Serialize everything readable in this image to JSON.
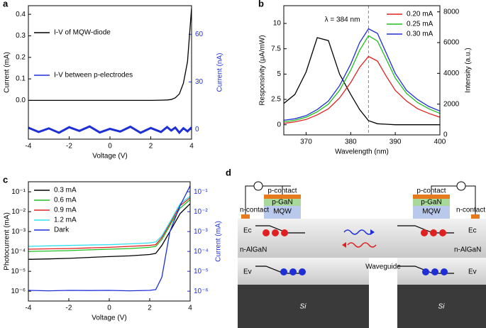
{
  "chart_data": [
    {
      "type": "line",
      "label": "a",
      "xlabel": "Voltage (V)",
      "ylabel": "Current (mA)",
      "y2label": "Current (nA)",
      "xlim": [
        -4,
        4
      ],
      "xticks": [
        -4,
        -2,
        0,
        2,
        4
      ],
      "ylim": [
        -0.18,
        0.44
      ],
      "yticks": [
        {
          "value": 0,
          "label": "0.0"
        },
        0.1,
        0.2,
        0.3,
        0.4
      ],
      "y2lim": [
        -6,
        78
      ],
      "y2ticks": [
        0,
        30,
        60
      ],
      "y2_color": "#1f2fd6",
      "legend": "upper left",
      "x": [
        -4,
        -3.5,
        -3,
        -2.5,
        -2,
        -1.5,
        -1,
        -0.5,
        0,
        0.5,
        1,
        1.5,
        2,
        2.5,
        2.8,
        3,
        3.2,
        3.4,
        3.6,
        3.8,
        4
      ],
      "series": [
        {
          "name": "I-V of MQW-diode",
          "color": "#000000",
          "values": [
            0,
            0,
            0,
            0,
            0,
            0,
            0,
            0,
            0,
            0,
            0,
            0,
            0,
            0.001,
            0.002,
            0.004,
            0.012,
            0.03,
            0.08,
            0.18,
            0.43
          ]
        },
        {
          "name": "I-V between p-electrodes",
          "color": "#1f2fd6",
          "axis": "y2",
          "values": [
            1.2,
            -1.5,
            0.8,
            -2,
            1.5,
            -0.8,
            2,
            -1.8,
            0.5,
            -1.2,
            1.8,
            -2,
            1,
            -1.5,
            1.6,
            -0.6,
            1.3,
            -1.9,
            0.9,
            -1.1,
            1.4
          ]
        }
      ]
    },
    {
      "type": "line",
      "label": "b",
      "xlabel": "Wavelength (nm)",
      "ylabel": "Responsivity (μA/mW)",
      "y2label": "Intensity (a.u.)",
      "xlim": [
        365,
        400
      ],
      "xticks": [
        370,
        380,
        390,
        400
      ],
      "ylim": [
        -1,
        11.75
      ],
      "yticks": [
        0,
        2.5,
        5,
        7.5,
        10
      ],
      "y2lim": [
        0,
        8400
      ],
      "y2ticks": [
        0,
        2000,
        4000,
        6000,
        8000
      ],
      "y2_color": "#000000",
      "legend": "upper right",
      "annotation": "λ = 384 nm",
      "vline": 384,
      "x": [
        365,
        367.5,
        370,
        372.5,
        375,
        377.5,
        380,
        382,
        384,
        386,
        388,
        390,
        392.5,
        395,
        397.5,
        400
      ],
      "series": [
        {
          "name": null,
          "color": "#000000",
          "values": [
            2.1,
            3,
            5.2,
            8.6,
            8.3,
            5,
            3,
            1.5,
            0.4,
            0.1,
            0.05,
            0,
            0,
            0,
            0,
            0
          ]
        },
        {
          "name": "0.20 mA",
          "color": "#e02020",
          "axis": "y2",
          "values": [
            750,
            850,
            1000,
            1300,
            1700,
            2400,
            3400,
            4400,
            5100,
            4800,
            3800,
            2900,
            2200,
            1700,
            1400,
            1150
          ]
        },
        {
          "name": "0.25 mA",
          "color": "#20c020",
          "axis": "y2",
          "values": [
            850,
            950,
            1150,
            1500,
            2000,
            2900,
            4200,
            5500,
            6450,
            6100,
            4900,
            3700,
            2700,
            2100,
            1700,
            1400
          ]
        },
        {
          "name": "0.30 mA",
          "color": "#1f2fd6",
          "axis": "y2",
          "values": [
            950,
            1050,
            1250,
            1650,
            2200,
            3200,
            4600,
            6000,
            6900,
            6600,
            5300,
            4000,
            2900,
            2300,
            1850,
            1550
          ]
        }
      ]
    },
    {
      "type": "line",
      "label": "c",
      "xlabel": "Voltage (V)",
      "ylabel": "Photocurrent (mA)",
      "y2label": "Current (mA)",
      "log_y": true,
      "xlim": [
        -4,
        4
      ],
      "xticks": [
        -4,
        -2,
        0,
        2,
        4
      ],
      "ylim": [
        3.2e-07,
        0.32
      ],
      "yticks": [
        {
          "value": 1e-06,
          "label": "10⁻⁶"
        },
        {
          "value": 1e-05,
          "label": "10⁻⁵"
        },
        {
          "value": 0.0001,
          "label": "10⁻⁴"
        },
        {
          "value": 0.001,
          "label": "10⁻³"
        },
        {
          "value": 0.01,
          "label": "10⁻²"
        },
        {
          "value": 0.1,
          "label": "10⁻¹"
        }
      ],
      "y2lim": [
        3.2e-07,
        0.32
      ],
      "y2ticks": [
        {
          "value": 1e-06,
          "label": "10⁻⁶"
        },
        {
          "value": 1e-05,
          "label": "10⁻⁵"
        },
        {
          "value": 0.0001,
          "label": "10⁻⁴"
        },
        {
          "value": 0.001,
          "label": "10⁻³"
        },
        {
          "value": 0.01,
          "label": "10⁻²"
        },
        {
          "value": 0.1,
          "label": "10⁻¹"
        }
      ],
      "y2_color": "#1f2fd6",
      "legend": "upper left",
      "x": [
        -4,
        -3,
        -2,
        -1,
        0,
        1,
        2,
        2.3,
        2.6,
        3,
        3.5,
        4
      ],
      "series": [
        {
          "name": "0.3 mA",
          "color": "#000000",
          "values": [
            4e-05,
            4.2e-05,
            4.5e-05,
            5e-05,
            5.5e-05,
            6e-05,
            7e-05,
            8e-05,
            0.0002,
            0.001,
            0.008,
            0.025
          ]
        },
        {
          "name": "0.6 mA",
          "color": "#20c020",
          "values": [
            0.0001,
            0.000105,
            0.00011,
            0.00012,
            0.00013,
            0.00014,
            0.00016,
            0.00018,
            0.0004,
            0.002,
            0.015,
            0.04
          ]
        },
        {
          "name": "0.9 mA",
          "color": "#e02020",
          "values": [
            0.00013,
            0.000135,
            0.00014,
            0.00015,
            0.00016,
            0.00018,
            0.0002,
            0.00022,
            0.0005,
            0.0025,
            0.02,
            0.05
          ]
        },
        {
          "name": "1.2 mA",
          "color": "#30e0f0",
          "values": [
            0.00018,
            0.00019,
            0.0002,
            0.00021,
            0.00022,
            0.00024,
            0.00027,
            0.0003,
            0.0006,
            0.003,
            0.025,
            0.06
          ]
        },
        {
          "name": "Dark",
          "color": "#1f2fd6",
          "axis": "y2",
          "values": [
            1.1e-06,
            1.05e-06,
            1.1e-06,
            1.08e-06,
            1.1e-06,
            1.05e-06,
            1.1e-06,
            1.2e-06,
            5e-06,
            0.001,
            0.02,
            0.2
          ]
        }
      ]
    }
  ],
  "diagram": {
    "label": "d",
    "p_contact_left": "p-contact",
    "p_gan_left": "p-GaN",
    "mqw_left": "MQW",
    "n_contact_left": "n-contact",
    "ec_left": "Ec",
    "ev_left": "Ev",
    "n_algan_left": "n-AlGaN",
    "waveguide": "Waveguide",
    "si_left": "Si",
    "p_contact_right": "p-contact",
    "p_gan_right": "p-GaN",
    "mqw_right": "MQW",
    "n_contact_right": "n-contact",
    "ec_right": "Ec",
    "ev_right": "Ev",
    "n_algan_right": "n-AlGaN",
    "si_right": "Si"
  }
}
